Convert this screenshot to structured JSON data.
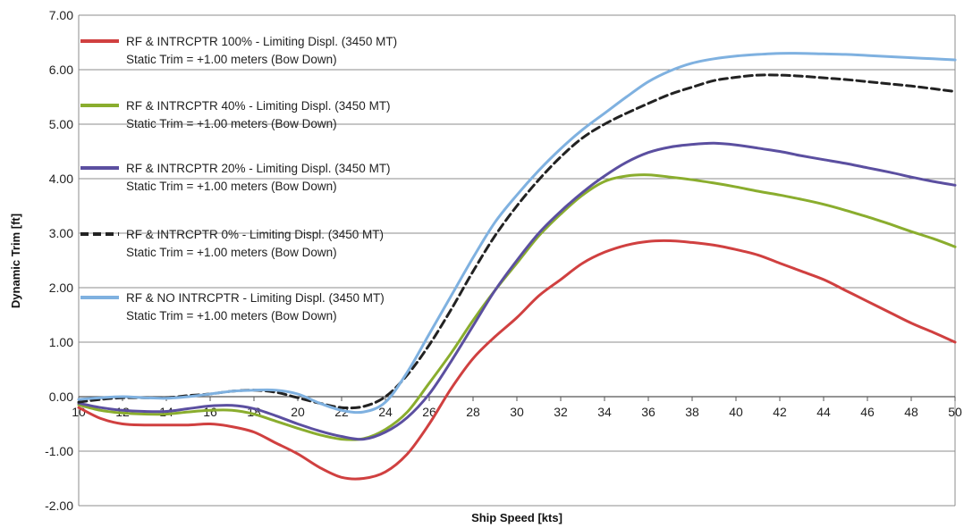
{
  "chart_data": {
    "type": "line",
    "xlabel": "Ship Speed [kts]",
    "ylabel": "Dynamic Trim  [ft]",
    "xlim": [
      10,
      50
    ],
    "ylim": [
      -2,
      7
    ],
    "x_ticks": [
      "10",
      "12",
      "14",
      "16",
      "18",
      "20",
      "22",
      "24",
      "26",
      "28",
      "30",
      "32",
      "34",
      "36",
      "38",
      "40",
      "42",
      "44",
      "46",
      "48",
      "50"
    ],
    "y_ticks": [
      "-2.00",
      "-1.00",
      "0.00",
      "1.00",
      "2.00",
      "3.00",
      "4.00",
      "5.00",
      "6.00",
      "7.00"
    ],
    "grid": "horizontal",
    "legend_placement": "top-left",
    "series": [
      {
        "name": "RF & INTRCPTR 100% - Limiting Displ. (3450 MT)",
        "subtitle": "Static Trim = +1.00 meters (Bow Down)",
        "color": "#d04040",
        "dash": "solid",
        "points": [
          [
            10,
            -0.2
          ],
          [
            11,
            -0.4
          ],
          [
            12,
            -0.5
          ],
          [
            13,
            -0.52
          ],
          [
            14,
            -0.52
          ],
          [
            15,
            -0.52
          ],
          [
            16,
            -0.5
          ],
          [
            17,
            -0.55
          ],
          [
            18,
            -0.65
          ],
          [
            19,
            -0.85
          ],
          [
            20,
            -1.05
          ],
          [
            21,
            -1.3
          ],
          [
            22,
            -1.48
          ],
          [
            23,
            -1.5
          ],
          [
            24,
            -1.38
          ],
          [
            25,
            -1.05
          ],
          [
            26,
            -0.5
          ],
          [
            27,
            0.15
          ],
          [
            28,
            0.7
          ],
          [
            29,
            1.1
          ],
          [
            30,
            1.45
          ],
          [
            31,
            1.85
          ],
          [
            32,
            2.15
          ],
          [
            33,
            2.45
          ],
          [
            34,
            2.65
          ],
          [
            35,
            2.78
          ],
          [
            36,
            2.85
          ],
          [
            37,
            2.86
          ],
          [
            38,
            2.83
          ],
          [
            39,
            2.78
          ],
          [
            40,
            2.7
          ],
          [
            41,
            2.6
          ],
          [
            42,
            2.45
          ],
          [
            43,
            2.3
          ],
          [
            44,
            2.15
          ],
          [
            45,
            1.95
          ],
          [
            46,
            1.75
          ],
          [
            47,
            1.55
          ],
          [
            48,
            1.35
          ],
          [
            49,
            1.18
          ],
          [
            50,
            1.0
          ]
        ]
      },
      {
        "name": "RF & INTRCPTR 40% - Limiting Displ. (3450 MT)",
        "subtitle": "Static Trim = +1.00 meters (Bow Down)",
        "color": "#8aad2e",
        "dash": "solid",
        "points": [
          [
            10,
            -0.15
          ],
          [
            11,
            -0.25
          ],
          [
            12,
            -0.3
          ],
          [
            13,
            -0.32
          ],
          [
            14,
            -0.32
          ],
          [
            15,
            -0.28
          ],
          [
            16,
            -0.25
          ],
          [
            17,
            -0.25
          ],
          [
            18,
            -0.32
          ],
          [
            19,
            -0.45
          ],
          [
            20,
            -0.58
          ],
          [
            21,
            -0.7
          ],
          [
            22,
            -0.78
          ],
          [
            23,
            -0.77
          ],
          [
            24,
            -0.6
          ],
          [
            25,
            -0.28
          ],
          [
            26,
            0.25
          ],
          [
            27,
            0.8
          ],
          [
            28,
            1.4
          ],
          [
            29,
            1.95
          ],
          [
            30,
            2.45
          ],
          [
            31,
            2.95
          ],
          [
            32,
            3.35
          ],
          [
            33,
            3.7
          ],
          [
            34,
            3.95
          ],
          [
            35,
            4.05
          ],
          [
            36,
            4.07
          ],
          [
            37,
            4.03
          ],
          [
            38,
            3.98
          ],
          [
            39,
            3.92
          ],
          [
            40,
            3.85
          ],
          [
            41,
            3.77
          ],
          [
            42,
            3.7
          ],
          [
            43,
            3.62
          ],
          [
            44,
            3.53
          ],
          [
            45,
            3.42
          ],
          [
            46,
            3.3
          ],
          [
            47,
            3.17
          ],
          [
            48,
            3.03
          ],
          [
            49,
            2.9
          ],
          [
            50,
            2.75
          ]
        ]
      },
      {
        "name": "RF & INTRCPTR 20% - Limiting Displ. (3450 MT)",
        "subtitle": "Static Trim = +1.00 meters (Bow Down)",
        "color": "#5b4fa0",
        "dash": "solid",
        "points": [
          [
            10,
            -0.12
          ],
          [
            11,
            -0.2
          ],
          [
            12,
            -0.25
          ],
          [
            13,
            -0.27
          ],
          [
            14,
            -0.27
          ],
          [
            15,
            -0.22
          ],
          [
            16,
            -0.17
          ],
          [
            17,
            -0.16
          ],
          [
            18,
            -0.22
          ],
          [
            19,
            -0.35
          ],
          [
            20,
            -0.5
          ],
          [
            21,
            -0.63
          ],
          [
            22,
            -0.73
          ],
          [
            23,
            -0.78
          ],
          [
            24,
            -0.65
          ],
          [
            25,
            -0.38
          ],
          [
            26,
            0.05
          ],
          [
            27,
            0.65
          ],
          [
            28,
            1.3
          ],
          [
            29,
            1.95
          ],
          [
            30,
            2.5
          ],
          [
            31,
            3.0
          ],
          [
            32,
            3.4
          ],
          [
            33,
            3.75
          ],
          [
            34,
            4.05
          ],
          [
            35,
            4.3
          ],
          [
            36,
            4.48
          ],
          [
            37,
            4.58
          ],
          [
            38,
            4.63
          ],
          [
            39,
            4.65
          ],
          [
            40,
            4.62
          ],
          [
            41,
            4.56
          ],
          [
            42,
            4.5
          ],
          [
            43,
            4.42
          ],
          [
            44,
            4.35
          ],
          [
            45,
            4.28
          ],
          [
            46,
            4.2
          ],
          [
            47,
            4.12
          ],
          [
            48,
            4.03
          ],
          [
            49,
            3.95
          ],
          [
            50,
            3.88
          ]
        ]
      },
      {
        "name": "RF & INTRCPTR 0% - Limiting Displ. (3450 MT)",
        "subtitle": "Static Trim = +1.00 meters (Bow Down)",
        "color": "#222222",
        "dash": "dashed",
        "points": [
          [
            10,
            -0.1
          ],
          [
            11,
            -0.05
          ],
          [
            12,
            -0.02
          ],
          [
            13,
            -0.02
          ],
          [
            14,
            -0.02
          ],
          [
            15,
            0.02
          ],
          [
            16,
            0.05
          ],
          [
            17,
            0.1
          ],
          [
            18,
            0.12
          ],
          [
            19,
            0.08
          ],
          [
            20,
            -0.02
          ],
          [
            21,
            -0.12
          ],
          [
            22,
            -0.2
          ],
          [
            23,
            -0.18
          ],
          [
            24,
            0.0
          ],
          [
            25,
            0.4
          ],
          [
            26,
            0.95
          ],
          [
            27,
            1.6
          ],
          [
            28,
            2.3
          ],
          [
            29,
            2.95
          ],
          [
            30,
            3.5
          ],
          [
            31,
            3.98
          ],
          [
            32,
            4.4
          ],
          [
            33,
            4.75
          ],
          [
            34,
            5.0
          ],
          [
            35,
            5.2
          ],
          [
            36,
            5.38
          ],
          [
            37,
            5.55
          ],
          [
            38,
            5.68
          ],
          [
            39,
            5.8
          ],
          [
            40,
            5.86
          ],
          [
            41,
            5.9
          ],
          [
            42,
            5.9
          ],
          [
            43,
            5.88
          ],
          [
            44,
            5.85
          ],
          [
            45,
            5.82
          ],
          [
            46,
            5.78
          ],
          [
            47,
            5.74
          ],
          [
            48,
            5.7
          ],
          [
            49,
            5.65
          ],
          [
            50,
            5.6
          ]
        ]
      },
      {
        "name": "RF & NO INTRCPTR - Limiting Displ. (3450 MT)",
        "subtitle": "Static Trim = +1.00 meters (Bow Down)",
        "color": "#7fb1e0",
        "dash": "solid",
        "points": [
          [
            10,
            -0.05
          ],
          [
            11,
            -0.02
          ],
          [
            12,
            0.0
          ],
          [
            13,
            -0.02
          ],
          [
            14,
            -0.03
          ],
          [
            15,
            0.0
          ],
          [
            16,
            0.05
          ],
          [
            17,
            0.1
          ],
          [
            18,
            0.12
          ],
          [
            19,
            0.12
          ],
          [
            20,
            0.05
          ],
          [
            21,
            -0.12
          ],
          [
            22,
            -0.25
          ],
          [
            23,
            -0.28
          ],
          [
            24,
            -0.1
          ],
          [
            25,
            0.45
          ],
          [
            26,
            1.15
          ],
          [
            27,
            1.85
          ],
          [
            28,
            2.55
          ],
          [
            29,
            3.2
          ],
          [
            30,
            3.7
          ],
          [
            31,
            4.15
          ],
          [
            32,
            4.55
          ],
          [
            33,
            4.9
          ],
          [
            34,
            5.2
          ],
          [
            35,
            5.5
          ],
          [
            36,
            5.78
          ],
          [
            37,
            5.98
          ],
          [
            38,
            6.12
          ],
          [
            39,
            6.2
          ],
          [
            40,
            6.25
          ],
          [
            41,
            6.28
          ],
          [
            42,
            6.3
          ],
          [
            43,
            6.3
          ],
          [
            44,
            6.29
          ],
          [
            45,
            6.28
          ],
          [
            46,
            6.26
          ],
          [
            47,
            6.24
          ],
          [
            48,
            6.22
          ],
          [
            49,
            6.2
          ],
          [
            50,
            6.18
          ]
        ]
      }
    ]
  }
}
